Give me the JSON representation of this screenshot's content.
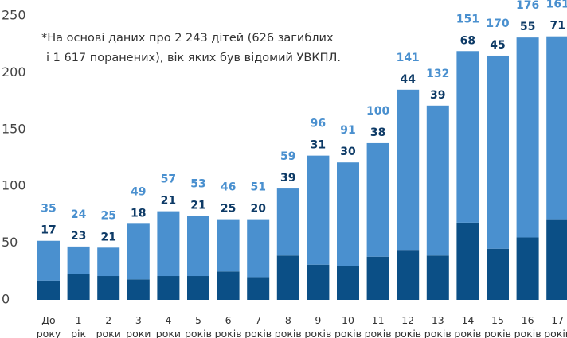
{
  "chart_data": {
    "type": "stacked_bar",
    "annotation": [
      "*На основі даних про 2 243 дітей (626 загиблих",
      "і 1 617 поранених), вік яких був відомий УВКПЛ."
    ],
    "categories": [
      "До року",
      "1 рік",
      "2 роки",
      "3 роки",
      "4 роки",
      "5 років",
      "6 років",
      "7 років",
      "8 років",
      "9 років",
      "10 років",
      "11 років",
      "12 років",
      "13 років",
      "14 років",
      "15 років",
      "16 років",
      "17 років"
    ],
    "series": [
      {
        "color": "#0b4f86",
        "label_color": "#0d3a66",
        "values": [
          17,
          23,
          21,
          18,
          21,
          21,
          25,
          20,
          39,
          31,
          30,
          38,
          44,
          39,
          68,
          45,
          55,
          71
        ]
      },
      {
        "color": "#4a90cf",
        "label_color": "#4a90cf",
        "values": [
          35,
          24,
          25,
          49,
          57,
          53,
          46,
          51,
          59,
          96,
          91,
          100,
          141,
          132,
          151,
          170,
          176,
          161
        ]
      }
    ],
    "ylim": [
      0,
      250
    ],
    "yticks": [
      0,
      50,
      100,
      150,
      200,
      250
    ]
  }
}
